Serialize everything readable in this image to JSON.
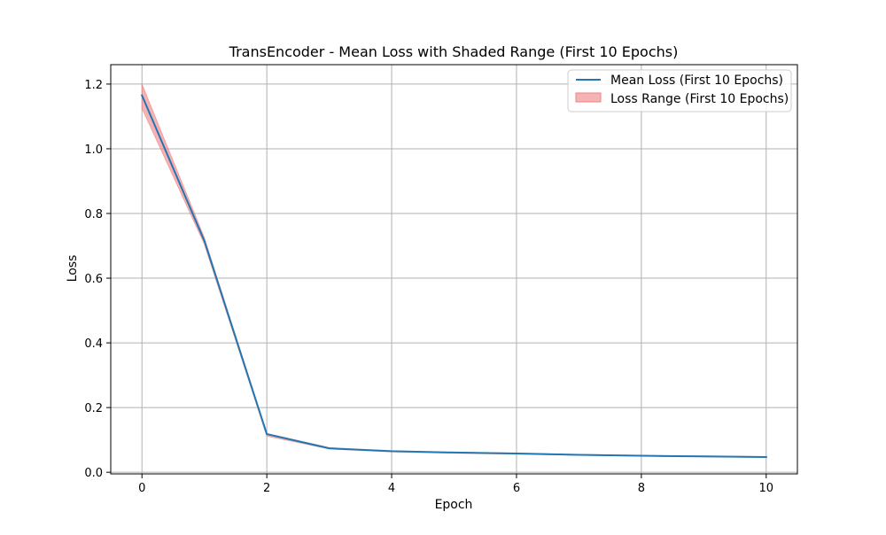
{
  "chart_data": {
    "type": "line",
    "title": "TransEncoder - Mean Loss with Shaded Range (First 10 Epochs)",
    "xlabel": "Epoch",
    "ylabel": "Loss",
    "xlim": [
      -0.5,
      10.5
    ],
    "ylim": [
      -0.005,
      1.26
    ],
    "x_ticks": [
      0,
      2,
      4,
      6,
      8,
      10
    ],
    "y_ticks": [
      0.0,
      0.2,
      0.4,
      0.6,
      0.8,
      1.0,
      1.2
    ],
    "x_tick_labels": [
      "0",
      "2",
      "4",
      "6",
      "8",
      "10"
    ],
    "y_tick_labels": [
      "0.0",
      "0.2",
      "0.4",
      "0.6",
      "0.8",
      "1.0",
      "1.2"
    ],
    "grid": true,
    "legend_position": "top-right",
    "x": [
      0,
      1,
      2,
      3,
      4,
      5,
      6,
      7,
      8,
      9,
      10
    ],
    "series": [
      {
        "name": "Mean Loss (First 10 Epochs)",
        "kind": "line",
        "color": "#1f77b4",
        "values": [
          1.165,
          0.715,
          0.118,
          0.074,
          0.065,
          0.061,
          0.058,
          0.054,
          0.051,
          0.049,
          0.047
        ]
      }
    ],
    "range": {
      "name": "Loss Range (First 10 Epochs)",
      "kind": "fill_between",
      "color": "#f08080",
      "lower": [
        1.125,
        0.705,
        0.112,
        0.072,
        0.063,
        0.059,
        0.056,
        0.053,
        0.05,
        0.048,
        0.046
      ],
      "upper": [
        1.2,
        0.725,
        0.12,
        0.076,
        0.066,
        0.062,
        0.059,
        0.055,
        0.052,
        0.05,
        0.048
      ]
    }
  }
}
